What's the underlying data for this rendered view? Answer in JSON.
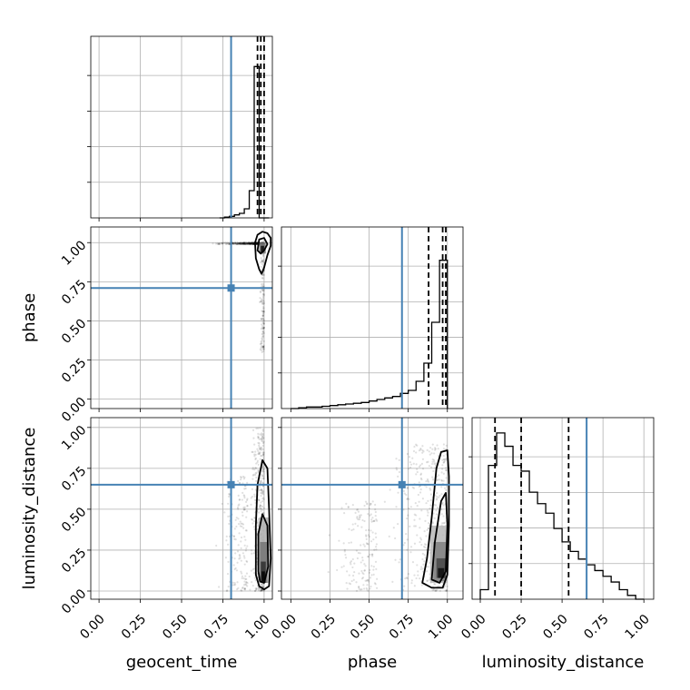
{
  "chart_data": {
    "type": "corner",
    "parameters": [
      "geocent_time",
      "phase",
      "luminosity_distance"
    ],
    "axis_labels": {
      "bottom": [
        "geocent_time",
        "phase",
        "luminosity_distance"
      ],
      "left": [
        "phase",
        "luminosity_distance"
      ]
    },
    "tick_values": [
      0.0,
      0.25,
      0.5,
      0.75,
      1.0
    ],
    "tick_labels": [
      "0.00",
      "0.25",
      "0.50",
      "0.75",
      "1.00"
    ],
    "ranges": {
      "geocent_time": [
        -0.05,
        1.05
      ],
      "phase": [
        -0.06,
        1.1
      ],
      "luminosity_distance": [
        -0.05,
        1.06
      ]
    },
    "grid": true,
    "injection": {
      "color": "#4682b4",
      "values": {
        "geocent_time": 0.8,
        "phase": 0.71,
        "luminosity_distance": 0.65
      }
    },
    "histograms": {
      "geocent_time": {
        "bins_x": [
          0.73,
          0.76,
          0.79,
          0.82,
          0.85,
          0.88,
          0.91,
          0.94,
          0.97,
          1.0,
          1.03
        ],
        "counts": [
          0.0,
          0.005,
          0.01,
          0.02,
          0.03,
          0.06,
          0.18,
          1.0,
          0.0,
          0.0
        ],
        "quantiles": [
          0.96,
          0.98,
          1.0
        ],
        "ylim": [
          0,
          1.2
        ]
      },
      "phase": {
        "bins_x": [
          0.0,
          0.05,
          0.1,
          0.15,
          0.2,
          0.25,
          0.3,
          0.35,
          0.4,
          0.45,
          0.5,
          0.55,
          0.6,
          0.65,
          0.7,
          0.75,
          0.8,
          0.85,
          0.9,
          0.95,
          1.0
        ],
        "counts": [
          0.0,
          0.005,
          0.01,
          0.01,
          0.015,
          0.02,
          0.025,
          0.03,
          0.035,
          0.04,
          0.05,
          0.06,
          0.07,
          0.08,
          0.1,
          0.12,
          0.18,
          0.3,
          0.57,
          0.98
        ],
        "quantiles": [
          0.88,
          0.97,
          0.99
        ],
        "ylim": [
          0,
          1.2
        ]
      },
      "luminosity_distance": {
        "bins_x": [
          0.0,
          0.05,
          0.1,
          0.15,
          0.2,
          0.25,
          0.3,
          0.35,
          0.4,
          0.45,
          0.5,
          0.55,
          0.6,
          0.65,
          0.7,
          0.75,
          0.8,
          0.85,
          0.9,
          0.95,
          1.0
        ],
        "counts": [
          0.05,
          0.7,
          0.87,
          0.8,
          0.7,
          0.67,
          0.56,
          0.5,
          0.45,
          0.37,
          0.3,
          0.25,
          0.21,
          0.18,
          0.15,
          0.12,
          0.09,
          0.05,
          0.02,
          0.0
        ],
        "quantiles": [
          0.09,
          0.25,
          0.54
        ],
        "ylim": [
          0,
          0.95
        ]
      }
    },
    "panels_2d": [
      {
        "x": "geocent_time",
        "y": "phase",
        "contour_outer": [
          [
            0.95,
            0.9
          ],
          [
            0.97,
            0.83
          ],
          [
            0.985,
            0.8
          ],
          [
            1.0,
            0.84
          ],
          [
            1.02,
            0.92
          ],
          [
            1.04,
            0.98
          ],
          [
            1.04,
            1.03
          ],
          [
            1.02,
            1.06
          ],
          [
            0.99,
            1.07
          ],
          [
            0.96,
            1.05
          ],
          [
            0.945,
            1.0
          ],
          [
            0.95,
            0.9
          ]
        ],
        "contour_inner": [
          [
            0.96,
            0.95
          ],
          [
            0.98,
            0.93
          ],
          [
            1.0,
            0.95
          ],
          [
            1.02,
            0.99
          ],
          [
            1.0,
            1.03
          ],
          [
            0.97,
            1.02
          ],
          [
            0.96,
            0.95
          ]
        ],
        "density_cells": [
          [
            0.97,
            0.93,
            1.01,
            1.0,
            0.5
          ],
          [
            0.98,
            0.94,
            1.0,
            0.98,
            0.95
          ]
        ],
        "scatter_region": [
          [
            0.65,
            1.0,
            0.99,
            1.0
          ],
          [
            0.97,
            1.0,
            0.3,
            1.0
          ]
        ]
      },
      {
        "x": "geocent_time",
        "y": "luminosity_distance",
        "contour_outer": [
          [
            0.95,
            0.1
          ],
          [
            0.95,
            0.4
          ],
          [
            0.96,
            0.65
          ],
          [
            0.99,
            0.8
          ],
          [
            1.02,
            0.75
          ],
          [
            1.03,
            0.5
          ],
          [
            1.04,
            0.2
          ],
          [
            1.03,
            0.03
          ],
          [
            1.0,
            0.01
          ],
          [
            0.97,
            0.03
          ],
          [
            0.95,
            0.1
          ]
        ],
        "contour_inner": [
          [
            0.965,
            0.12
          ],
          [
            0.965,
            0.35
          ],
          [
            0.99,
            0.47
          ],
          [
            1.02,
            0.4
          ],
          [
            1.025,
            0.15
          ],
          [
            1.0,
            0.05
          ],
          [
            0.975,
            0.06
          ],
          [
            0.965,
            0.12
          ]
        ],
        "density_cells": [
          [
            0.97,
            0.05,
            1.03,
            0.45,
            0.25
          ],
          [
            0.975,
            0.05,
            1.02,
            0.3,
            0.5
          ],
          [
            0.98,
            0.05,
            1.01,
            0.18,
            0.8
          ],
          [
            0.985,
            0.06,
            1.005,
            0.12,
            1.0
          ]
        ],
        "scatter_region": [
          [
            0.9,
            1.0,
            0.0,
            1.0
          ],
          [
            0.7,
            0.9,
            0.0,
            0.7
          ]
        ]
      },
      {
        "x": "phase",
        "y": "luminosity_distance",
        "contour_outer": [
          [
            0.84,
            0.05
          ],
          [
            0.87,
            0.2
          ],
          [
            0.9,
            0.45
          ],
          [
            0.93,
            0.75
          ],
          [
            0.96,
            0.85
          ],
          [
            1.0,
            0.86
          ],
          [
            1.01,
            0.7
          ],
          [
            1.01,
            0.4
          ],
          [
            1.0,
            0.1
          ],
          [
            0.97,
            0.02
          ],
          [
            0.9,
            0.02
          ],
          [
            0.84,
            0.05
          ]
        ],
        "contour_inner": [
          [
            0.9,
            0.07
          ],
          [
            0.92,
            0.3
          ],
          [
            0.96,
            0.55
          ],
          [
            0.99,
            0.6
          ],
          [
            1.0,
            0.4
          ],
          [
            0.99,
            0.12
          ],
          [
            0.95,
            0.05
          ],
          [
            0.9,
            0.07
          ]
        ],
        "density_cells": [
          [
            0.89,
            0.05,
            1.0,
            0.4,
            0.2
          ],
          [
            0.91,
            0.06,
            0.99,
            0.3,
            0.45
          ],
          [
            0.93,
            0.08,
            0.99,
            0.2,
            0.7
          ],
          [
            0.94,
            0.08,
            0.98,
            0.14,
            0.95
          ]
        ],
        "scatter_region": [
          [
            0.55,
            1.0,
            0.0,
            0.9
          ],
          [
            0.2,
            0.55,
            0.0,
            0.55
          ]
        ]
      }
    ]
  }
}
